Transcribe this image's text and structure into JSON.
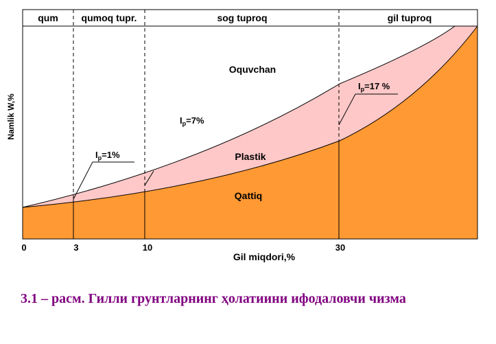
{
  "header": {
    "zones": [
      "qum",
      "qumoq tupr.",
      "sog tuproq",
      "gil tuproq"
    ]
  },
  "axes": {
    "x_label": "Gil miqdori,%",
    "y_label": "Namlik W,%",
    "x_ticks": [
      "0",
      "3",
      "10",
      "30"
    ]
  },
  "regions": {
    "top": "Oquvchan",
    "middle": "Plastik",
    "bottom": "Qattiq"
  },
  "annotations": {
    "ip1": {
      "sym": "I",
      "sub": "p",
      "rest": "=1%"
    },
    "ip7": {
      "sym": "I",
      "sub": "p",
      "rest": "=7%"
    },
    "ip17": {
      "sym": "I",
      "sub": "p",
      "rest": "=17 %"
    }
  },
  "caption": "3.1 – расм.  Гилли  грунтларнинг ҳолатиини ифодаловчи чизма",
  "colors": {
    "plastic_zone": "#ffc8c8",
    "solid_zone": "#ff9933",
    "caption": "#800080"
  }
}
